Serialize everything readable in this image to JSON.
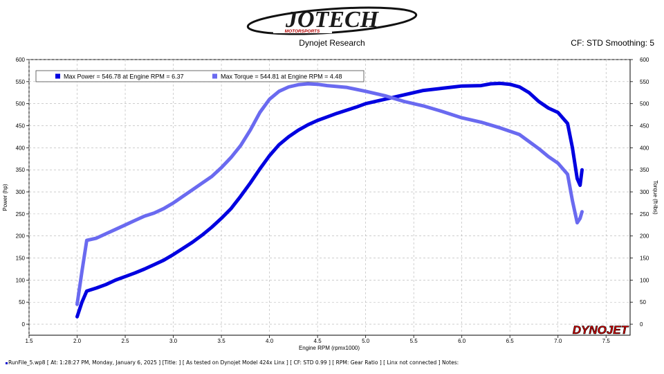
{
  "header": {
    "logo_text": "JOTECH",
    "logo_sub": "MOTORSPORTS",
    "subtitle": "Dynojet Research",
    "cf_info": "CF: STD Smoothing: 5"
  },
  "brand": {
    "text": "DYNOJET"
  },
  "footer": {
    "text": "RunFile_5.wp8 [ At: 1:28:27 PM, Monday, January 6, 2025 ] [Title: ] [ As tested on Dynojet Model 424x Linx ] [ CF: STD 0.99 ] [ RPM: Gear Ratio ] [ Linx not connected ] Notes:"
  },
  "colors": {
    "power": "#0000e0",
    "torque": "#6a6af0",
    "grid": "#b0b0b0"
  },
  "chart_data": {
    "type": "line",
    "title": "Dynojet Research",
    "xlabel": "Engine RPM (rpmx1000)",
    "ylabel": "Power (hp)",
    "y2label": "Torque (ft-lbs)",
    "xlim": [
      1.5,
      7.75
    ],
    "ylim": [
      -25,
      600
    ],
    "y2lim": [
      -25,
      600
    ],
    "xticks": [
      1.5,
      2.0,
      2.5,
      3.0,
      3.5,
      4.0,
      4.5,
      5.0,
      5.5,
      6.0,
      6.5,
      7.0,
      7.5
    ],
    "yticks": [
      0,
      50,
      100,
      150,
      200,
      250,
      300,
      350,
      400,
      450,
      500,
      550,
      600
    ],
    "grid": true,
    "legend_position": "top-left",
    "series": [
      {
        "name": "Max Power = 546.78 at Engine RPM = 6.37",
        "axis": "left",
        "x": [
          2.0,
          2.05,
          2.1,
          2.2,
          2.3,
          2.4,
          2.5,
          2.6,
          2.7,
          2.8,
          2.9,
          3.0,
          3.1,
          3.2,
          3.3,
          3.4,
          3.5,
          3.6,
          3.7,
          3.8,
          3.9,
          4.0,
          4.1,
          4.2,
          4.3,
          4.4,
          4.5,
          4.6,
          4.7,
          4.8,
          4.9,
          5.0,
          5.2,
          5.4,
          5.6,
          5.8,
          6.0,
          6.2,
          6.3,
          6.4,
          6.5,
          6.6,
          6.7,
          6.8,
          6.9,
          7.0,
          7.1,
          7.15,
          7.2,
          7.23,
          7.25
        ],
        "values": [
          17,
          50,
          75,
          82,
          90,
          100,
          108,
          116,
          125,
          135,
          145,
          158,
          172,
          186,
          202,
          220,
          240,
          262,
          290,
          320,
          352,
          382,
          407,
          425,
          440,
          452,
          462,
          470,
          478,
          485,
          492,
          500,
          510,
          520,
          530,
          535,
          540,
          541,
          545,
          546,
          544,
          538,
          525,
          505,
          490,
          480,
          455,
          400,
          330,
          315,
          350
        ]
      },
      {
        "name": "Max Torque = 544.81 at Engine RPM = 4.48",
        "axis": "right",
        "x": [
          2.0,
          2.05,
          2.1,
          2.2,
          2.3,
          2.4,
          2.5,
          2.6,
          2.7,
          2.8,
          2.9,
          3.0,
          3.1,
          3.2,
          3.3,
          3.4,
          3.5,
          3.6,
          3.7,
          3.8,
          3.9,
          4.0,
          4.1,
          4.2,
          4.3,
          4.4,
          4.5,
          4.6,
          4.8,
          5.0,
          5.2,
          5.4,
          5.6,
          5.8,
          6.0,
          6.2,
          6.4,
          6.6,
          6.8,
          6.9,
          7.0,
          7.1,
          7.15,
          7.2,
          7.23,
          7.25
        ],
        "values": [
          45,
          120,
          190,
          195,
          205,
          215,
          225,
          235,
          245,
          252,
          262,
          275,
          290,
          305,
          320,
          335,
          355,
          378,
          405,
          440,
          480,
          510,
          528,
          538,
          543,
          545,
          544,
          541,
          537,
          528,
          518,
          505,
          495,
          482,
          468,
          458,
          445,
          430,
          398,
          380,
          365,
          340,
          280,
          230,
          240,
          255
        ]
      }
    ]
  }
}
